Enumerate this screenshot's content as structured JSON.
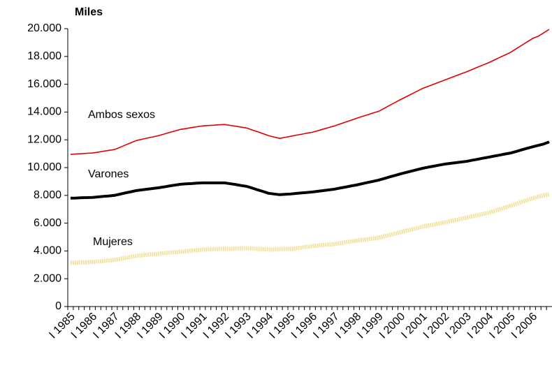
{
  "chart_data": {
    "type": "line",
    "ylabel": "Miles",
    "categories": [
      "I 1985",
      null,
      null,
      null,
      "I 1986",
      null,
      null,
      null,
      "I 1987",
      null,
      null,
      null,
      "I 1988",
      null,
      null,
      null,
      "I 1989",
      null,
      null,
      null,
      "I 1990",
      null,
      null,
      null,
      "I 1991",
      null,
      null,
      null,
      "I 1992",
      null,
      null,
      null,
      "I 1993",
      null,
      null,
      null,
      "I 1994",
      null,
      null,
      null,
      "I 1995",
      null,
      null,
      null,
      "I 1996",
      null,
      null,
      null,
      "I 1997",
      null,
      null,
      null,
      "I 1998",
      null,
      null,
      null,
      "I 1999",
      null,
      null,
      null,
      "I 2000",
      null,
      null,
      null,
      "I 2001",
      null,
      null,
      null,
      "I 2002",
      null,
      null,
      null,
      "I 2003",
      null,
      null,
      null,
      "I 2004",
      null,
      null,
      null,
      "I 2005",
      null,
      null,
      null,
      "I 2006",
      null,
      null,
      null
    ],
    "series": [
      {
        "name": "Ambos sexos",
        "color": "#e00000",
        "width": 1.6,
        "values": [
          10950,
          10980,
          11000,
          11030,
          11050,
          11110,
          11180,
          11240,
          11300,
          11460,
          11630,
          11790,
          11950,
          12040,
          12130,
          12210,
          12300,
          12410,
          12530,
          12640,
          12750,
          12810,
          12880,
          12940,
          13000,
          13030,
          13050,
          13080,
          13100,
          13040,
          12980,
          12910,
          12850,
          12710,
          12580,
          12440,
          12300,
          12200,
          12100,
          12180,
          12250,
          12330,
          12400,
          12480,
          12550,
          12660,
          12780,
          12890,
          13000,
          13140,
          13280,
          13410,
          13550,
          13680,
          13800,
          13930,
          14050,
          14260,
          14480,
          14690,
          14900,
          15100,
          15300,
          15500,
          15700,
          15850,
          16000,
          16150,
          16300,
          16450,
          16600,
          16750,
          16900,
          17060,
          17230,
          17390,
          17550,
          17740,
          17930,
          18110,
          18300,
          18550,
          18800,
          19050,
          19300,
          19450,
          19700,
          19950
        ]
      },
      {
        "name": "Varones",
        "color": "#000000",
        "width": 4,
        "values": [
          7800,
          7810,
          7830,
          7840,
          7850,
          7890,
          7930,
          7960,
          8000,
          8090,
          8180,
          8260,
          8350,
          8400,
          8450,
          8500,
          8550,
          8610,
          8680,
          8740,
          8800,
          8830,
          8850,
          8880,
          8900,
          8900,
          8900,
          8900,
          8900,
          8840,
          8780,
          8710,
          8650,
          8530,
          8400,
          8280,
          8150,
          8100,
          8050,
          8080,
          8100,
          8140,
          8180,
          8210,
          8250,
          8300,
          8350,
          8400,
          8450,
          8530,
          8600,
          8680,
          8750,
          8840,
          8930,
          9010,
          9100,
          9210,
          9330,
          9440,
          9550,
          9650,
          9750,
          9850,
          9950,
          10030,
          10100,
          10180,
          10250,
          10300,
          10350,
          10400,
          10450,
          10530,
          10600,
          10680,
          10750,
          10830,
          10900,
          10980,
          11050,
          11160,
          11280,
          11390,
          11500,
          11600,
          11700,
          11850
        ]
      },
      {
        "name": "Mujeres",
        "color": "#f3e3a0",
        "width": 6,
        "values": [
          3150,
          3160,
          3180,
          3190,
          3200,
          3240,
          3280,
          3310,
          3350,
          3430,
          3500,
          3580,
          3650,
          3690,
          3730,
          3760,
          3800,
          3840,
          3880,
          3910,
          3950,
          3990,
          4030,
          4060,
          4100,
          4110,
          4130,
          4140,
          4150,
          4160,
          4180,
          4190,
          4200,
          4180,
          4150,
          4130,
          4100,
          4110,
          4130,
          4140,
          4150,
          4200,
          4250,
          4300,
          4350,
          4390,
          4430,
          4460,
          4500,
          4560,
          4630,
          4690,
          4750,
          4800,
          4850,
          4900,
          4950,
          5050,
          5150,
          5250,
          5350,
          5450,
          5550,
          5650,
          5750,
          5830,
          5900,
          5980,
          6050,
          6140,
          6230,
          6310,
          6400,
          6490,
          6580,
          6660,
          6750,
          6880,
          7000,
          7130,
          7250,
          7390,
          7530,
          7660,
          7800,
          7900,
          8000,
          8100
        ]
      }
    ],
    "ylim": [
      0,
      20000
    ],
    "yticks": [
      0,
      {
        "value": 2000,
        "label": "2.000"
      },
      {
        "value": 4000,
        "label": "4.000"
      },
      {
        "value": 6000,
        "label": "6.000"
      },
      {
        "value": 8000,
        "label": "8.000"
      },
      {
        "value": 10000,
        "label": "10.000"
      },
      {
        "value": 12000,
        "label": "12.000"
      },
      {
        "value": 14000,
        "label": "14.000"
      },
      {
        "value": 16000,
        "label": "16.000"
      },
      {
        "value": 18000,
        "label": "18.000"
      },
      {
        "value": 20000,
        "label": "20.000"
      }
    ],
    "grid": false
  }
}
